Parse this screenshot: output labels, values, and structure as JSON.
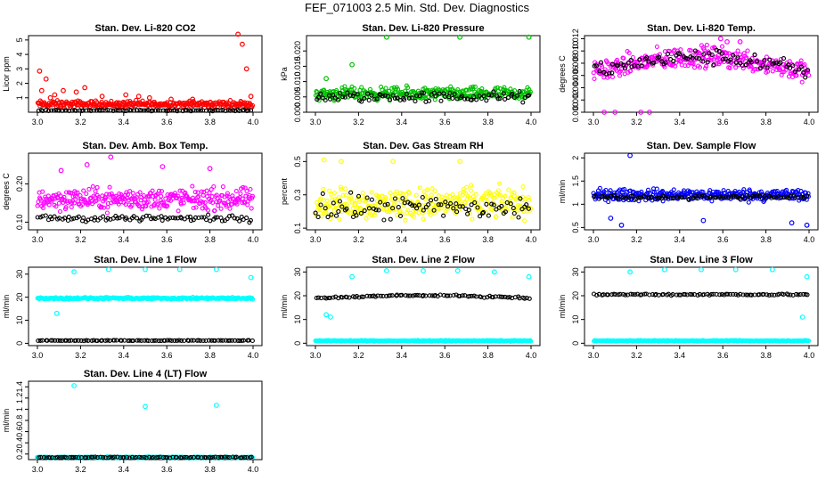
{
  "figure_title": "FEF_071003  2.5 Min. Std. Dev. Diagnostics",
  "colors": {
    "axis": "#000000",
    "black_series": "#000000"
  },
  "chart_data": [
    {
      "type": "scatter",
      "title": "Stan. Dev. Li-820 CO2",
      "ylabel": "Licor ppm",
      "color": "#ff0000",
      "xlim": [
        3.0,
        4.0
      ],
      "ylim": [
        0,
        5.3
      ],
      "xticks": [
        3.0,
        3.2,
        3.4,
        3.6,
        3.8,
        4.0
      ],
      "yticks": [
        1,
        2,
        3,
        4,
        5
      ],
      "series": [
        {
          "name": "red",
          "base": 0.55,
          "noise": 0.35,
          "outliers": [
            [
              3.01,
              2.85
            ],
            [
              3.02,
              1.5
            ],
            [
              3.04,
              2.3
            ],
            [
              3.06,
              1.0
            ],
            [
              3.08,
              1.2
            ],
            [
              3.12,
              1.5
            ],
            [
              3.18,
              1.4
            ],
            [
              3.22,
              1.7
            ],
            [
              3.3,
              1.1
            ],
            [
              3.41,
              1.2
            ],
            [
              3.47,
              1.1
            ],
            [
              3.52,
              1.0
            ],
            [
              3.62,
              0.9
            ],
            [
              3.72,
              0.9
            ],
            [
              3.93,
              5.4
            ],
            [
              3.95,
              4.7
            ],
            [
              3.97,
              3.0
            ],
            [
              3.99,
              1.1
            ]
          ]
        },
        {
          "name": "black",
          "base": 0.12,
          "noise": 0.05,
          "outliers": []
        }
      ]
    },
    {
      "type": "scatter",
      "title": "Stan. Dev. Li-820 Pressure",
      "ylabel": "kPa",
      "color": "#00c000",
      "xlim": [
        3.0,
        4.0
      ],
      "ylim": [
        0,
        0.025
      ],
      "xticks": [
        3.0,
        3.2,
        3.4,
        3.6,
        3.8,
        4.0
      ],
      "yticks": [
        0.0,
        0.005,
        0.01,
        0.015,
        0.02
      ],
      "ytick_labels": [
        "0.000",
        "0.005",
        "0.010",
        "0.015",
        "0.020"
      ],
      "series": [
        {
          "name": "green",
          "base": 0.006,
          "noise": 0.003,
          "outliers": [
            [
              3.17,
              0.0155
            ],
            [
              3.33,
              0.0245
            ],
            [
              3.67,
              0.0245
            ],
            [
              3.99,
              0.0245
            ],
            [
              3.05,
              0.011
            ]
          ]
        },
        {
          "name": "black",
          "base": 0.005,
          "noise": 0.0025,
          "outliers": []
        }
      ]
    },
    {
      "type": "scatter",
      "title": "Stan. Dev. Li-820 Temp.",
      "ylabel": "degrees C",
      "color": "#ff00ff",
      "xlim": [
        3.0,
        4.0
      ],
      "ylim": [
        0,
        0.0125
      ],
      "xticks": [
        3.0,
        3.2,
        3.4,
        3.6,
        3.8,
        4.0
      ],
      "yticks": [
        0.0,
        0.002,
        0.004,
        0.006,
        0.008,
        0.01,
        0.012
      ],
      "ytick_labels": [
        "0.000",
        "0.002",
        "0.004",
        "0.006",
        "0.008",
        "0.010",
        "0.012"
      ],
      "series": [
        {
          "name": "magenta",
          "base": 0.0065,
          "noise": 0.0025,
          "outliers": [
            [
              3.05,
              0.0
            ],
            [
              3.1,
              0.0
            ],
            [
              3.22,
              0.0
            ],
            [
              3.26,
              0.0
            ],
            [
              3.62,
              0.0115
            ],
            [
              3.59,
              0.012
            ],
            [
              3.68,
              0.0115
            ],
            [
              3.51,
              0.0105
            ]
          ]
        },
        {
          "name": "black",
          "base": 0.0065,
          "noise": 0.0018,
          "outliers": []
        }
      ]
    },
    {
      "type": "scatter",
      "title": "Stan. Dev. Amb. Box Temp.",
      "ylabel": "degrees C",
      "color": "#ff00ff",
      "xlim": [
        3.0,
        4.0
      ],
      "ylim": [
        0.08,
        0.28
      ],
      "xticks": [
        3.0,
        3.2,
        3.4,
        3.6,
        3.8,
        4.0
      ],
      "yticks": [
        0.1,
        0.2
      ],
      "ytick_labels": [
        "0.10",
        "0.20"
      ],
      "series": [
        {
          "name": "magenta",
          "base": 0.16,
          "noise": 0.04,
          "outliers": [
            [
              3.34,
              0.27
            ],
            [
              3.23,
              0.25
            ],
            [
              3.58,
              0.245
            ],
            [
              3.8,
              0.24
            ],
            [
              3.11,
              0.235
            ]
          ]
        },
        {
          "name": "black",
          "base": 0.11,
          "noise": 0.012,
          "outliers": []
        }
      ]
    },
    {
      "type": "scatter",
      "title": "Stan. Dev. Gas Stream RH",
      "ylabel": "percent",
      "color": "#ffff00",
      "xlim": [
        3.0,
        4.0
      ],
      "ylim": [
        0.09,
        0.55
      ],
      "xticks": [
        3.0,
        3.2,
        3.4,
        3.6,
        3.8,
        4.0
      ],
      "yticks": [
        0.1,
        0.3,
        0.5
      ],
      "series": [
        {
          "name": "yellow",
          "base": 0.25,
          "noise": 0.13,
          "outliers": [
            [
              3.04,
              0.51
            ],
            [
              3.12,
              0.5
            ],
            [
              3.36,
              0.5
            ],
            [
              3.67,
              0.5
            ]
          ]
        },
        {
          "name": "black",
          "base": 0.22,
          "noise": 0.11,
          "outliers": []
        }
      ]
    },
    {
      "type": "scatter",
      "title": "Stan. Dev. Sample Flow",
      "ylabel": "ml/min",
      "color": "#0000ff",
      "xlim": [
        3.0,
        4.0
      ],
      "ylim": [
        0.45,
        2.1
      ],
      "xticks": [
        3.0,
        3.2,
        3.4,
        3.6,
        3.8,
        4.0
      ],
      "yticks": [
        0.5,
        1.0,
        1.5,
        2.0
      ],
      "series": [
        {
          "name": "blue",
          "base": 1.2,
          "noise": 0.18,
          "outliers": [
            [
              3.17,
              2.05
            ],
            [
              3.13,
              0.55
            ],
            [
              3.92,
              0.6
            ],
            [
              3.99,
              0.55
            ],
            [
              3.08,
              0.7
            ],
            [
              3.51,
              0.65
            ]
          ]
        },
        {
          "name": "black",
          "base": 1.15,
          "noise": 0.06,
          "outliers": []
        }
      ]
    },
    {
      "type": "scatter",
      "title": "Stan. Dev. Line 1 Flow",
      "ylabel": "ml/min",
      "color": "#00ffff",
      "xlim": [
        3.0,
        4.0
      ],
      "ylim": [
        -1,
        33
      ],
      "xticks": [
        3.0,
        3.2,
        3.4,
        3.6,
        3.8,
        4.0
      ],
      "yticks": [
        0,
        10,
        20,
        30
      ],
      "series": [
        {
          "name": "cyan",
          "base": 19.5,
          "noise": 0.6,
          "outliers": [
            [
              3.17,
              31
            ],
            [
              3.33,
              32
            ],
            [
              3.5,
              32
            ],
            [
              3.66,
              32
            ],
            [
              3.83,
              32
            ],
            [
              3.99,
              28.5
            ],
            [
              3.09,
              13
            ]
          ]
        },
        {
          "name": "black",
          "base": 1.2,
          "noise": 0.15,
          "outliers": []
        }
      ]
    },
    {
      "type": "scatter",
      "title": "Stan. Dev. Line 2 Flow",
      "ylabel": "ml/min",
      "color": "#00ffff",
      "xlim": [
        3.0,
        4.0
      ],
      "ylim": [
        -1,
        32
      ],
      "xticks": [
        3.0,
        3.2,
        3.4,
        3.6,
        3.8,
        4.0
      ],
      "yticks": [
        0,
        10,
        20,
        30
      ],
      "series": [
        {
          "name": "cyan",
          "base": 1.0,
          "noise": 0.3,
          "outliers": [
            [
              3.17,
              28
            ],
            [
              3.33,
              30.5
            ],
            [
              3.5,
              30.5
            ],
            [
              3.66,
              30.5
            ],
            [
              3.83,
              30
            ],
            [
              3.99,
              28
            ],
            [
              3.07,
              11
            ],
            [
              3.05,
              12
            ]
          ]
        },
        {
          "name": "black",
          "base": 19.5,
          "noise": 0.5,
          "outliers": []
        }
      ]
    },
    {
      "type": "scatter",
      "title": "Stan. Dev. Line 3 Flow",
      "ylabel": "ml/min",
      "color": "#00ffff",
      "xlim": [
        3.0,
        4.0
      ],
      "ylim": [
        -1,
        32
      ],
      "xticks": [
        3.0,
        3.2,
        3.4,
        3.6,
        3.8,
        4.0
      ],
      "yticks": [
        0,
        10,
        20,
        30
      ],
      "series": [
        {
          "name": "cyan",
          "base": 1.0,
          "noise": 0.3,
          "outliers": [
            [
              3.17,
              30
            ],
            [
              3.33,
              31
            ],
            [
              3.5,
              31
            ],
            [
              3.66,
              31
            ],
            [
              3.83,
              31
            ],
            [
              3.99,
              28
            ],
            [
              3.97,
              11
            ]
          ]
        },
        {
          "name": "black",
          "base": 20.5,
          "noise": 0.5,
          "outliers": []
        }
      ]
    },
    {
      "type": "scatter",
      "title": "Stan. Dev. Line 4 (LT) Flow",
      "ylabel": "ml/min",
      "color": "#00ffff",
      "xlim": [
        3.0,
        4.0
      ],
      "ylim": [
        0.1,
        1.5
      ],
      "xticks": [
        3.0,
        3.2,
        3.4,
        3.6,
        3.8,
        4.0
      ],
      "yticks": [
        0.2,
        0.4,
        0.6,
        0.8,
        1.0,
        1.2,
        1.4
      ],
      "series": [
        {
          "name": "cyan",
          "base": 0.14,
          "noise": 0.015,
          "outliers": [
            [
              3.17,
              1.42
            ],
            [
              3.5,
              1.05
            ],
            [
              3.83,
              1.07
            ],
            [
              3.0,
              0.14
            ]
          ]
        },
        {
          "name": "black",
          "base": 0.14,
          "noise": 0.012,
          "outliers": []
        }
      ]
    }
  ]
}
